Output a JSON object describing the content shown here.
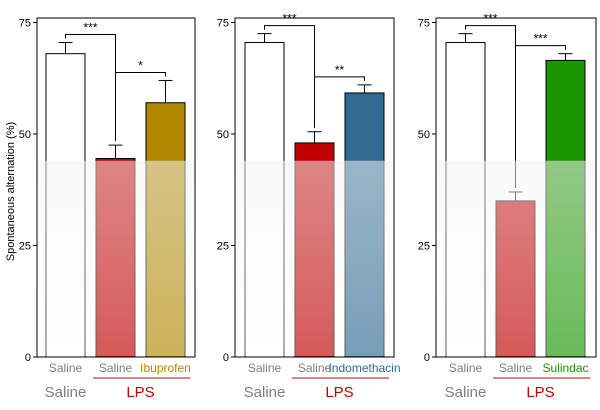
{
  "chart_data": [
    {
      "type": "bar",
      "ylabel": "Spontaneous alternation (%)",
      "ylim": [
        0,
        76
      ],
      "yticks": [
        0,
        25,
        50,
        75
      ],
      "categories": [
        "Saline",
        "Saline",
        "Ibuprofen"
      ],
      "values": [
        68,
        44.5,
        57
      ],
      "errors": [
        2.5,
        3,
        5
      ],
      "bar_colors": [
        "#ffffff",
        "#c00000",
        "#b08800"
      ],
      "label_colors": [
        "#7f7f7f",
        "#7f7f7f",
        "#b08800"
      ],
      "group_labels": [
        {
          "text": "Saline",
          "color": "#7f7f7f",
          "bars": [
            0,
            0
          ]
        },
        {
          "text": "LPS",
          "color": "#c00000",
          "bars": [
            1,
            2
          ]
        }
      ],
      "significance": [
        {
          "from": 0,
          "to": 1,
          "label": "***"
        },
        {
          "from": 1,
          "to": 2,
          "label": "*"
        }
      ]
    },
    {
      "type": "bar",
      "ylabel": "",
      "ylim": [
        0,
        76
      ],
      "yticks": [
        0,
        25,
        50,
        75
      ],
      "categories": [
        "Saline",
        "Saline",
        "Indomethacin"
      ],
      "values": [
        70.5,
        48,
        59.2
      ],
      "errors": [
        2,
        2.5,
        1.8
      ],
      "bar_colors": [
        "#ffffff",
        "#c00000",
        "#2e6a92"
      ],
      "label_colors": [
        "#7f7f7f",
        "#7f7f7f",
        "#2e6a92"
      ],
      "group_labels": [
        {
          "text": "Saline",
          "color": "#7f7f7f",
          "bars": [
            0,
            0
          ]
        },
        {
          "text": "LPS",
          "color": "#c00000",
          "bars": [
            1,
            2
          ]
        }
      ],
      "significance": [
        {
          "from": 0,
          "to": 1,
          "label": "***"
        },
        {
          "from": 1,
          "to": 2,
          "label": "**"
        }
      ]
    },
    {
      "type": "bar",
      "ylabel": "",
      "ylim": [
        0,
        76
      ],
      "yticks": [
        0,
        25,
        50,
        75
      ],
      "categories": [
        "Saline",
        "Saline",
        "Sulindac"
      ],
      "values": [
        70.5,
        35,
        66.5
      ],
      "errors": [
        2,
        2,
        1.5
      ],
      "bar_colors": [
        "#ffffff",
        "#c00000",
        "#1a9400"
      ],
      "label_colors": [
        "#7f7f7f",
        "#7f7f7f",
        "#1a9400"
      ],
      "group_labels": [
        {
          "text": "Saline",
          "color": "#7f7f7f",
          "bars": [
            0,
            0
          ]
        },
        {
          "text": "LPS",
          "color": "#c00000",
          "bars": [
            1,
            2
          ]
        }
      ],
      "significance": [
        {
          "from": 0,
          "to": 1,
          "label": "***"
        },
        {
          "from": 1,
          "to": 2,
          "label": "***"
        }
      ]
    }
  ]
}
